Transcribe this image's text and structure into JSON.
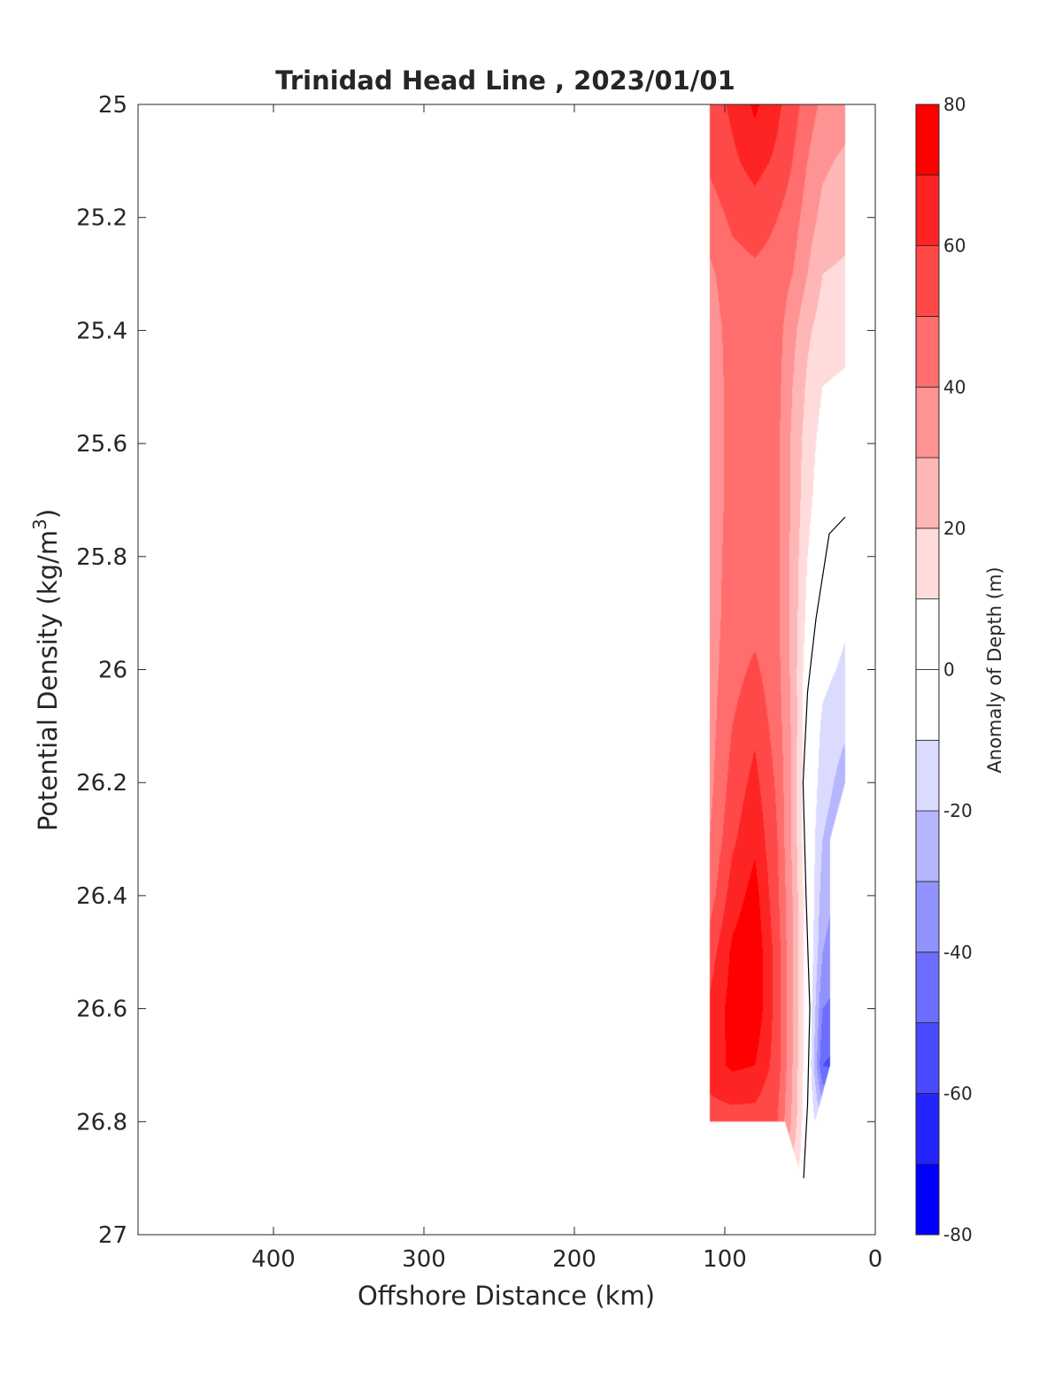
{
  "chart_data": {
    "type": "heatmap",
    "subtype": "filled-contour",
    "title": "Trinidad Head Line , 2023/01/01",
    "xlabel": "Offshore Distance (km)",
    "ylabel_main": "Potential Density (kg/m",
    "ylabel_sup": "3",
    "ylabel_close": ")",
    "xlim": [
      490,
      0
    ],
    "x_reversed": true,
    "ylim": [
      25,
      27
    ],
    "y_reversed": true,
    "xticks": [
      400,
      300,
      200,
      100,
      0
    ],
    "xtick_labels": [
      "400",
      "300",
      "200",
      "100",
      "0"
    ],
    "yticks": [
      25,
      25.2,
      25.4,
      25.6,
      25.8,
      26,
      26.2,
      26.4,
      26.6,
      26.8,
      27
    ],
    "ytick_labels": [
      "25",
      "25.2",
      "25.4",
      "25.6",
      "25.8",
      "26",
      "26.2",
      "26.4",
      "26.6",
      "26.8",
      "27"
    ],
    "grid": false,
    "colorbar": {
      "label": "Anomaly of Depth (m)",
      "range": [
        -80,
        80
      ],
      "levels": [
        -80,
        -70,
        -60,
        -50,
        -40,
        -30,
        -20,
        -10,
        0,
        10,
        20,
        30,
        40,
        50,
        60,
        70,
        80
      ],
      "ticks": [
        80,
        60,
        40,
        20,
        0,
        -20,
        -40,
        -60,
        -80
      ],
      "tick_labels": [
        "80",
        "60",
        "40",
        "20",
        "0",
        "-20",
        "-40",
        "-60",
        "-80"
      ],
      "band_colors": [
        "#0000ff",
        "#2424ff",
        "#4949ff",
        "#6d6dff",
        "#9292ff",
        "#b6b6ff",
        "#dbdbff",
        "#ffffff",
        "#ffffff",
        "#ffdbdb",
        "#ffb6b6",
        "#ff9292",
        "#ff6d6d",
        "#ff4949",
        "#ff2424",
        "#ff0000"
      ]
    },
    "grid_x_km": [
      110,
      95,
      80,
      65,
      55,
      45,
      35,
      20
    ],
    "grid_y_density": [
      25.0,
      25.1,
      25.2,
      25.3,
      25.4,
      25.5,
      25.6,
      25.7,
      25.8,
      25.9,
      26.0,
      26.1,
      26.2,
      26.3,
      26.4,
      26.5,
      26.6,
      26.7,
      26.8,
      26.9
    ],
    "anomaly_m": [
      [
        55,
        62,
        72,
        62,
        55,
        45,
        38,
        35
      ],
      [
        52,
        58,
        64,
        58,
        50,
        40,
        32,
        28
      ],
      [
        45,
        52,
        55,
        50,
        45,
        35,
        27,
        24
      ],
      [
        38,
        46,
        48,
        46,
        40,
        30,
        20,
        18
      ],
      [
        35,
        44,
        45,
        44,
        33,
        22,
        15,
        14
      ],
      [
        35,
        43,
        45,
        43,
        30,
        18,
        10,
        8
      ],
      [
        35,
        43,
        45,
        42,
        28,
        15,
        6,
        5
      ],
      [
        35,
        43,
        45,
        42,
        28,
        13,
        4,
        1
      ],
      [
        35,
        44,
        45,
        42,
        27,
        10,
        0,
        -3
      ],
      [
        35,
        45,
        46,
        42,
        27,
        7,
        -3,
        -8
      ],
      [
        36,
        46,
        52,
        43,
        27,
        3,
        -7,
        -12
      ],
      [
        36,
        50,
        58,
        45,
        28,
        1,
        -12,
        -18
      ],
      [
        37,
        54,
        63,
        48,
        28,
        0,
        -15,
        -25
      ],
      [
        40,
        58,
        68,
        50,
        28,
        0,
        -20,
        -30
      ],
      [
        45,
        65,
        74,
        52,
        30,
        2,
        -25,
        -35
      ],
      [
        55,
        72,
        78,
        55,
        30,
        2,
        -30,
        -40
      ],
      [
        62,
        74,
        78,
        55,
        30,
        2,
        -40,
        -45
      ],
      [
        65,
        72,
        70,
        55,
        30,
        2,
        -50,
        -55
      ],
      [
        55,
        55,
        55,
        50,
        28,
        0,
        -20,
        -20
      ],
      [
        50,
        50,
        50,
        40,
        15,
        0,
        -12,
        -12
      ]
    ],
    "data_extent_polygon": [
      [
        110,
        25.0
      ],
      [
        20,
        25.0
      ],
      [
        20,
        26.2
      ],
      [
        30,
        26.3
      ],
      [
        30,
        26.7
      ],
      [
        40,
        26.8
      ],
      [
        40,
        26.9
      ],
      [
        49,
        26.9
      ],
      [
        60,
        26.8
      ],
      [
        110,
        26.8
      ]
    ],
    "zero_contour": [
      [
        20,
        25.73
      ],
      [
        30.6,
        25.76
      ],
      [
        39.4,
        25.91
      ],
      [
        45,
        26.04
      ],
      [
        48,
        26.2
      ],
      [
        46,
        26.4
      ],
      [
        43.5,
        26.6
      ],
      [
        45,
        26.77
      ],
      [
        47.6,
        26.9
      ]
    ]
  }
}
